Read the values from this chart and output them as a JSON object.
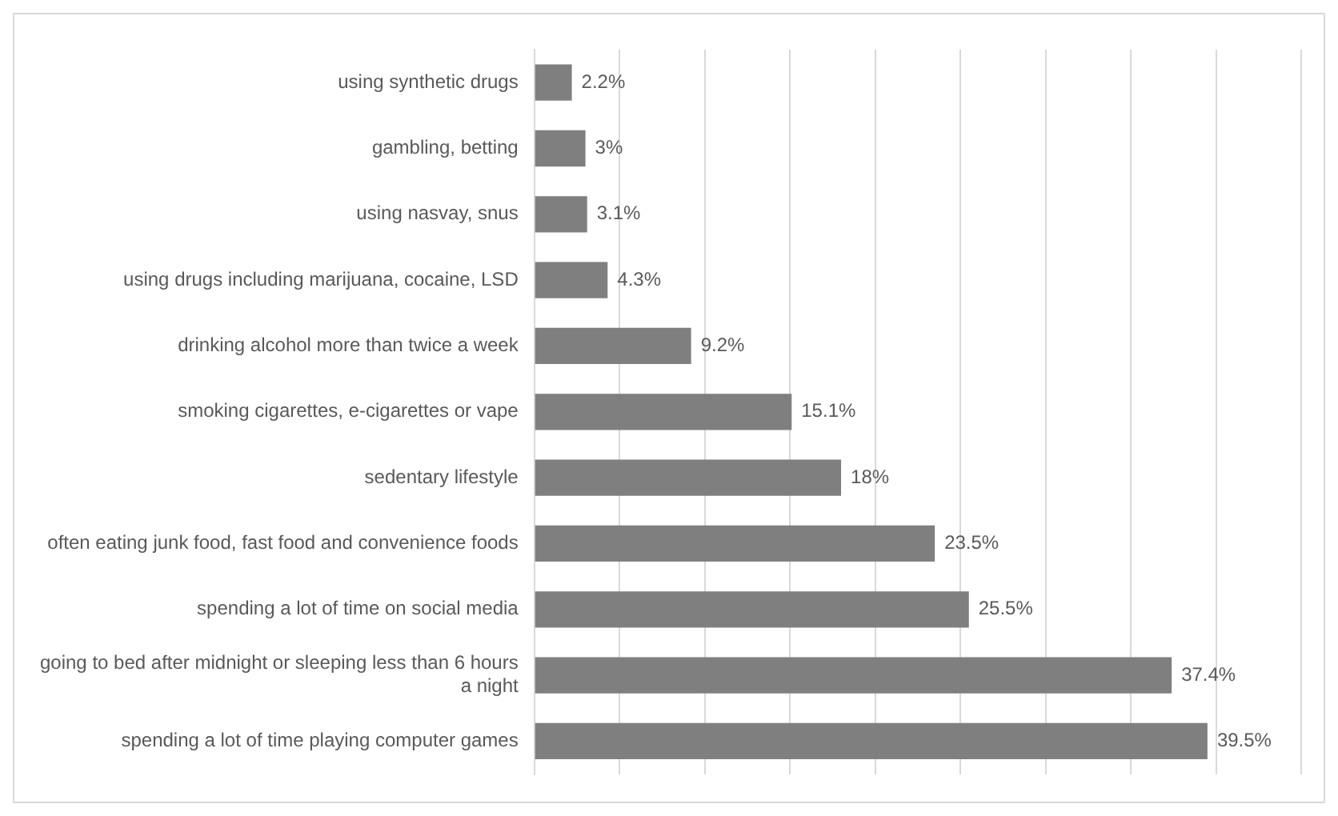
{
  "chart_data": {
    "type": "bar",
    "orientation": "horizontal",
    "categories": [
      "using synthetic drugs",
      "gambling, betting",
      "using nasvay, snus",
      "using drugs including marijuana, cocaine, LSD",
      "drinking alcohol more than twice a week",
      "smoking cigarettes, e-cigarettes or vape",
      "sedentary lifestyle",
      "often eating junk food, fast food and convenience foods",
      "spending a lot of time on social media",
      "going to bed after midnight or sleeping less than 6 hours a night",
      "spending a lot of time playing computer games"
    ],
    "values": [
      2.2,
      3,
      3.1,
      4.3,
      9.2,
      15.1,
      18,
      23.5,
      25.5,
      37.4,
      39.5
    ],
    "value_labels": [
      "2.2%",
      "3%",
      "3.1%",
      "4.3%",
      "9.2%",
      "15.1%",
      "18%",
      "23.5%",
      "25.5%",
      "37.4%",
      "39.5%"
    ],
    "color": "#7f7f7f",
    "xlim": [
      0,
      45
    ],
    "xticks": [
      {
        "value": 0,
        "label": null
      },
      {
        "value": 5,
        "label": null
      },
      {
        "value": 10,
        "label": null
      },
      {
        "value": 15,
        "label": null
      },
      {
        "value": 20,
        "label": null
      },
      {
        "value": 25,
        "label": null
      },
      {
        "value": 30,
        "label": null
      },
      {
        "value": 35,
        "label": null
      },
      {
        "value": 40,
        "label": null
      },
      {
        "value": 45,
        "label": null
      }
    ],
    "tick_labels": "y",
    "grid": "x",
    "legend": false
  }
}
